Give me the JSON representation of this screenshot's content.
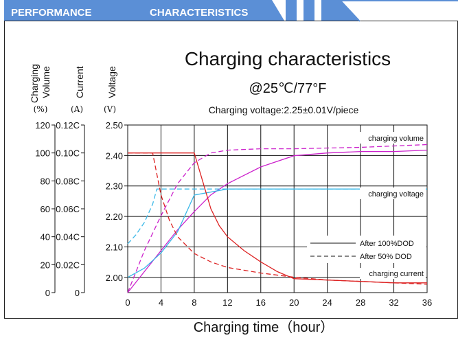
{
  "header": {
    "label_left": "PERFORMANCE",
    "label_right": "CHARACTERISTICS",
    "band_color": "#5b8fd6"
  },
  "chart_data": {
    "type": "line",
    "title": "Charging characteristics",
    "subtitle": "@25℃/77°F",
    "note": "Charging voltage:2.25±0.01V/piece",
    "xlabel": "Charging time（hour）",
    "x_ticks": [
      "0",
      "4",
      "8",
      "12",
      "16",
      "20",
      "24",
      "28",
      "32",
      "36"
    ],
    "xlim": [
      0,
      36
    ],
    "grid": true,
    "y_axes": [
      {
        "title_lines": [
          "Charging",
          "Volume"
        ],
        "unit": "(%)",
        "ticks": [
          "0",
          "20",
          "40",
          "60",
          "80",
          "100",
          "120"
        ],
        "ylim": [
          0,
          120
        ]
      },
      {
        "title_lines": [
          "Current"
        ],
        "unit": "(A)",
        "ticks": [
          "0",
          "0.02C",
          "0.04C",
          "0.06C",
          "0.08C",
          "0.10C",
          "0.12C"
        ],
        "ylim": [
          0,
          0.12
        ]
      },
      {
        "title_lines": [
          "Voltage"
        ],
        "unit": "(V)",
        "ticks": [
          "2.00",
          "2.10",
          "2.20",
          "2.30",
          "2.40",
          "2.50"
        ],
        "ylim": [
          1.95,
          2.5
        ]
      }
    ],
    "legend": {
      "placement": "lower-right",
      "entries": [
        {
          "label": "After 100%DOD",
          "dash": "solid"
        },
        {
          "label": "After  50% DOD",
          "dash": "dashed"
        }
      ]
    },
    "curve_labels": {
      "volume": "charging volume",
      "voltage": "charging voltage",
      "current": "charging current"
    },
    "series": [
      {
        "group": "volume",
        "dod": "100",
        "axis": "volume",
        "color": "#cc22cc",
        "dash": "solid",
        "x": [
          0,
          2,
          4,
          6,
          8,
          10,
          12,
          16,
          20,
          24,
          28,
          32,
          36
        ],
        "values": [
          0,
          15,
          30,
          45,
          58,
          70,
          78,
          90,
          98,
          100,
          101,
          101,
          102
        ]
      },
      {
        "group": "volume",
        "dod": "50",
        "axis": "volume",
        "color": "#cc22cc",
        "dash": "dashed",
        "x": [
          0,
          2,
          4,
          6,
          8,
          10,
          12,
          16,
          20,
          24,
          28,
          32,
          36
        ],
        "values": [
          0,
          30,
          55,
          78,
          93,
          100,
          102,
          103,
          103,
          103.5,
          104,
          105,
          106
        ]
      },
      {
        "group": "voltage",
        "dod": "100",
        "axis": "voltage",
        "color": "#3ab8e8",
        "dash": "solid",
        "x": [
          0,
          2,
          4,
          6,
          8,
          12,
          16,
          20,
          24,
          28,
          32,
          36
        ],
        "values": [
          2.0,
          2.03,
          2.08,
          2.15,
          2.27,
          2.29,
          2.29,
          2.29,
          2.29,
          2.29,
          2.29,
          2.29
        ]
      },
      {
        "group": "voltage",
        "dod": "50",
        "axis": "voltage",
        "color": "#3ab8e8",
        "dash": "dashed",
        "x": [
          0,
          1,
          2,
          3,
          3.5,
          6,
          10,
          16,
          20,
          24,
          28,
          32,
          36
        ],
        "values": [
          2.11,
          2.14,
          2.18,
          2.24,
          2.29,
          2.29,
          2.29,
          2.29,
          2.29,
          2.29,
          2.29,
          2.29,
          2.29
        ]
      },
      {
        "group": "current",
        "dod": "100",
        "axis": "current",
        "color": "#dd2222",
        "dash": "solid",
        "x": [
          0,
          8,
          9,
          10,
          11,
          12,
          14,
          16,
          18,
          20,
          24,
          28,
          32,
          36
        ],
        "values": [
          0.1,
          0.1,
          0.08,
          0.06,
          0.048,
          0.04,
          0.03,
          0.022,
          0.015,
          0.01,
          0.009,
          0.008,
          0.007,
          0.007
        ]
      },
      {
        "group": "current",
        "dod": "50",
        "axis": "current",
        "color": "#dd2222",
        "dash": "dashed",
        "x": [
          0,
          3,
          4,
          5,
          6,
          8,
          10,
          12,
          16,
          20,
          24,
          28,
          32,
          36
        ],
        "values": [
          0.1,
          0.1,
          0.07,
          0.052,
          0.04,
          0.028,
          0.022,
          0.018,
          0.014,
          0.011,
          0.009,
          0.008,
          0.007,
          0.006
        ]
      }
    ]
  }
}
